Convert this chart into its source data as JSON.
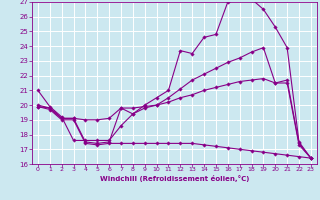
{
  "xlabel": "Windchill (Refroidissement éolien,°C)",
  "xlim": [
    -0.5,
    23.5
  ],
  "ylim": [
    16,
    27
  ],
  "yticks": [
    16,
    17,
    18,
    19,
    20,
    21,
    22,
    23,
    24,
    25,
    26,
    27
  ],
  "xticks": [
    0,
    1,
    2,
    3,
    4,
    5,
    6,
    7,
    8,
    9,
    10,
    11,
    12,
    13,
    14,
    15,
    16,
    17,
    18,
    19,
    20,
    21,
    22,
    23
  ],
  "background_color": "#cce8f0",
  "grid_color": "#ffffff",
  "line_color": "#880088",
  "lines": [
    {
      "x": [
        0,
        1,
        2,
        3,
        4,
        5,
        6,
        7,
        8,
        9,
        10,
        11,
        12,
        13,
        14,
        15,
        16,
        17,
        18,
        19,
        20,
        21,
        22,
        23
      ],
      "y": [
        21,
        19.9,
        19.2,
        17.6,
        17.6,
        17.6,
        17.6,
        18.6,
        19.4,
        20.0,
        20.5,
        21.0,
        23.7,
        23.5,
        24.6,
        24.8,
        27.0,
        27.2,
        27.2,
        26.5,
        25.3,
        23.9,
        17.5,
        16.4
      ]
    },
    {
      "x": [
        0,
        1,
        2,
        3,
        4,
        5,
        6,
        7,
        8,
        9,
        10,
        11,
        12,
        13,
        14,
        15,
        16,
        17,
        18,
        19,
        20,
        21,
        22,
        23
      ],
      "y": [
        20.0,
        19.8,
        19.1,
        19.1,
        17.5,
        17.4,
        17.5,
        19.8,
        19.4,
        19.8,
        20.0,
        20.5,
        21.1,
        21.7,
        22.1,
        22.5,
        22.9,
        23.2,
        23.6,
        23.9,
        21.5,
        21.7,
        17.4,
        16.4
      ]
    },
    {
      "x": [
        0,
        1,
        2,
        3,
        4,
        5,
        6,
        7,
        8,
        9,
        10,
        11,
        12,
        13,
        14,
        15,
        16,
        17,
        18,
        19,
        20,
        21,
        22,
        23
      ],
      "y": [
        19.9,
        19.8,
        19.1,
        19.1,
        19.0,
        19.0,
        19.1,
        19.8,
        19.8,
        19.9,
        20.0,
        20.2,
        20.5,
        20.7,
        21.0,
        21.2,
        21.4,
        21.6,
        21.7,
        21.8,
        21.5,
        21.5,
        17.3,
        16.4
      ]
    },
    {
      "x": [
        0,
        1,
        2,
        3,
        4,
        5,
        6,
        7,
        8,
        9,
        10,
        11,
        12,
        13,
        14,
        15,
        16,
        17,
        18,
        19,
        20,
        21,
        22,
        23
      ],
      "y": [
        19.9,
        19.7,
        19.0,
        19.0,
        17.4,
        17.3,
        17.4,
        17.4,
        17.4,
        17.4,
        17.4,
        17.4,
        17.4,
        17.4,
        17.3,
        17.2,
        17.1,
        17.0,
        16.9,
        16.8,
        16.7,
        16.6,
        16.5,
        16.4
      ]
    }
  ]
}
